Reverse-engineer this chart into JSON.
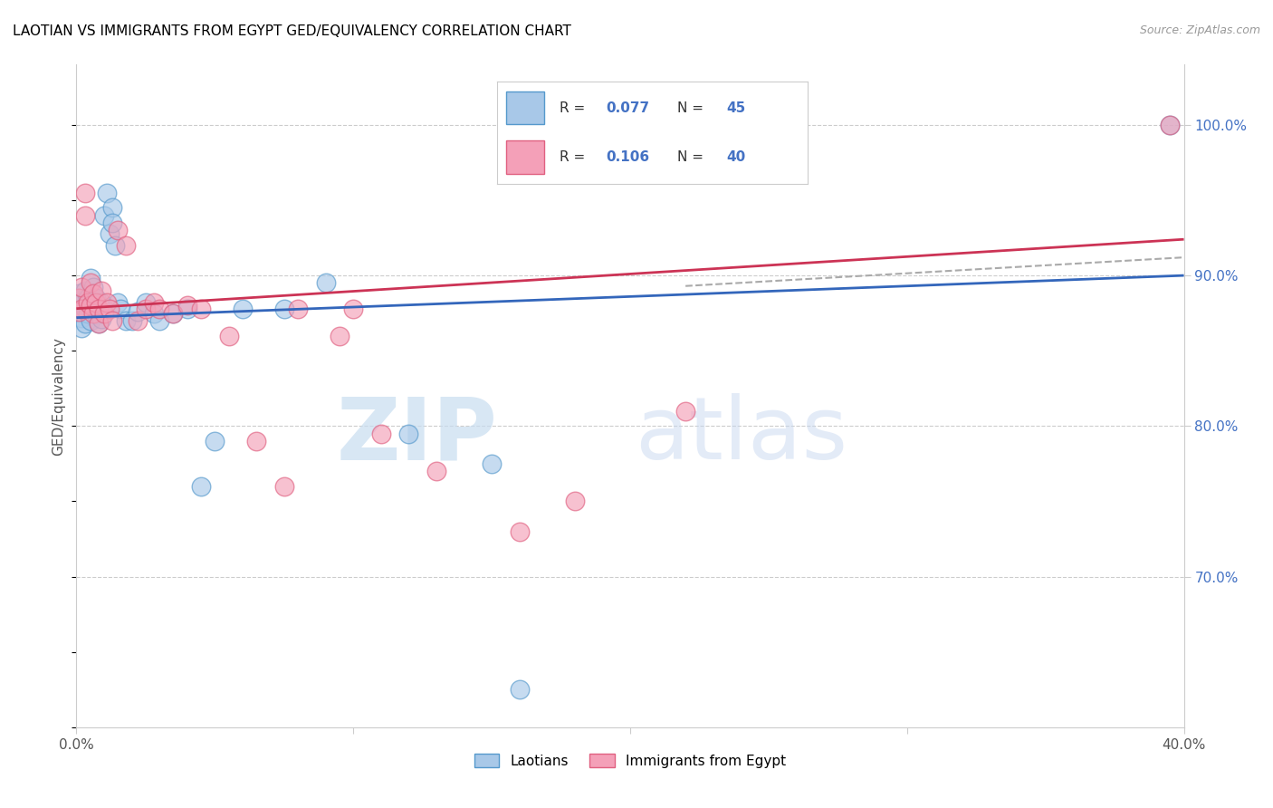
{
  "title": "LAOTIAN VS IMMIGRANTS FROM EGYPT GED/EQUIVALENCY CORRELATION CHART",
  "source": "Source: ZipAtlas.com",
  "ylabel": "GED/Equivalency",
  "ytick_labels": [
    "100.0%",
    "90.0%",
    "80.0%",
    "70.0%"
  ],
  "ytick_values": [
    1.0,
    0.9,
    0.8,
    0.7
  ],
  "legend_r1": "0.077",
  "legend_n1": "45",
  "legend_r2": "0.106",
  "legend_n2": "40",
  "blue_color": "#a8c8e8",
  "pink_color": "#f4a0b8",
  "blue_edge_color": "#5599cc",
  "pink_edge_color": "#e06080",
  "blue_line_color": "#3366bb",
  "pink_line_color": "#cc3355",
  "xmin": 0.0,
  "xmax": 0.4,
  "ymin": 0.6,
  "ymax": 1.04,
  "blue_trend": [
    0.0,
    0.4,
    0.872,
    0.9
  ],
  "pink_trend": [
    0.0,
    0.4,
    0.878,
    0.924
  ],
  "gray_dash": [
    0.22,
    0.4,
    0.893,
    0.912
  ],
  "laotian_x": [
    0.001,
    0.001,
    0.002,
    0.002,
    0.002,
    0.003,
    0.003,
    0.003,
    0.004,
    0.004,
    0.005,
    0.005,
    0.006,
    0.006,
    0.007,
    0.007,
    0.008,
    0.008,
    0.009,
    0.009,
    0.01,
    0.011,
    0.012,
    0.013,
    0.013,
    0.014,
    0.015,
    0.016,
    0.018,
    0.02,
    0.022,
    0.025,
    0.028,
    0.03,
    0.035,
    0.04,
    0.045,
    0.05,
    0.06,
    0.075,
    0.09,
    0.12,
    0.15,
    0.16,
    0.395
  ],
  "laotian_y": [
    0.888,
    0.876,
    0.882,
    0.872,
    0.865,
    0.89,
    0.878,
    0.868,
    0.885,
    0.875,
    0.898,
    0.87,
    0.892,
    0.88,
    0.885,
    0.874,
    0.878,
    0.868,
    0.882,
    0.871,
    0.94,
    0.955,
    0.928,
    0.945,
    0.935,
    0.92,
    0.882,
    0.878,
    0.87,
    0.87,
    0.876,
    0.882,
    0.875,
    0.87,
    0.875,
    0.878,
    0.76,
    0.79,
    0.878,
    0.878,
    0.895,
    0.795,
    0.775,
    0.625,
    1.0
  ],
  "egypt_x": [
    0.001,
    0.001,
    0.002,
    0.002,
    0.003,
    0.003,
    0.004,
    0.005,
    0.005,
    0.006,
    0.006,
    0.007,
    0.008,
    0.008,
    0.009,
    0.01,
    0.011,
    0.012,
    0.013,
    0.015,
    0.018,
    0.022,
    0.025,
    0.028,
    0.03,
    0.035,
    0.04,
    0.045,
    0.055,
    0.065,
    0.075,
    0.08,
    0.095,
    0.1,
    0.11,
    0.13,
    0.16,
    0.18,
    0.22,
    0.395
  ],
  "egypt_y": [
    0.885,
    0.876,
    0.892,
    0.878,
    0.955,
    0.94,
    0.882,
    0.895,
    0.88,
    0.888,
    0.875,
    0.882,
    0.878,
    0.868,
    0.89,
    0.875,
    0.882,
    0.878,
    0.87,
    0.93,
    0.92,
    0.87,
    0.878,
    0.882,
    0.878,
    0.875,
    0.88,
    0.878,
    0.86,
    0.79,
    0.76,
    0.878,
    0.86,
    0.878,
    0.795,
    0.77,
    0.73,
    0.75,
    0.81,
    1.0
  ]
}
